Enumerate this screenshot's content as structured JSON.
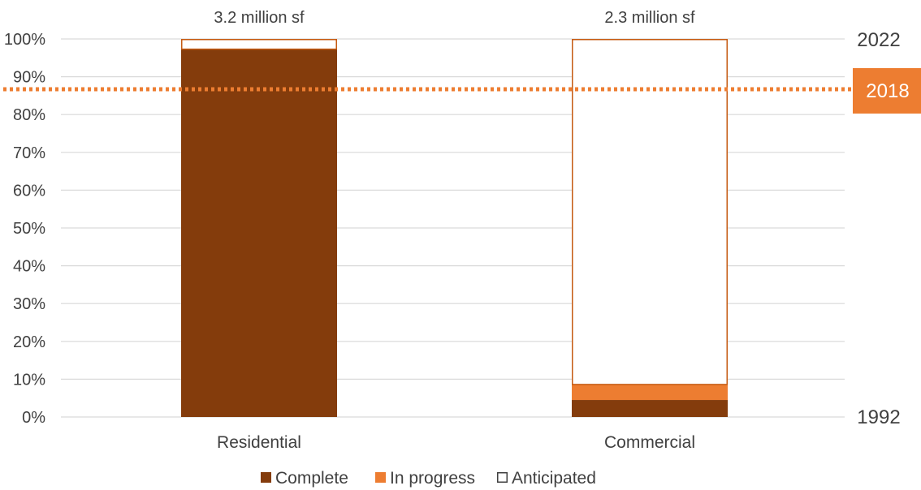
{
  "chart_data": {
    "type": "bar",
    "stacked": true,
    "categories": [
      "Residential",
      "Commercial"
    ],
    "series": [
      {
        "name": "Complete",
        "values": [
          97.3,
          4.5
        ],
        "color": "#843c0c",
        "style": "filled"
      },
      {
        "name": "In progress",
        "values": [
          0,
          4.1
        ],
        "color": "#ed7d31",
        "style": "filled"
      },
      {
        "name": "Anticipated",
        "values": [
          2.7,
          91.4
        ],
        "color": "#ffffff",
        "stroke": "#c55a11",
        "style": "outline"
      }
    ],
    "totals": [
      "3.2 million sf",
      "2.3 million sf"
    ],
    "y_ticks": [
      "0%",
      "10%",
      "20%",
      "30%",
      "40%",
      "50%",
      "60%",
      "70%",
      "80%",
      "90%",
      "100%"
    ],
    "ylim": [
      0,
      100
    ],
    "grid": true,
    "legend_position": "bottom",
    "right_axis": {
      "top_label": "2022",
      "bottom_label": "1992"
    },
    "reference_line": {
      "value": 86.7,
      "label": "2018",
      "color": "#ed7d31",
      "style": "dotted"
    }
  }
}
